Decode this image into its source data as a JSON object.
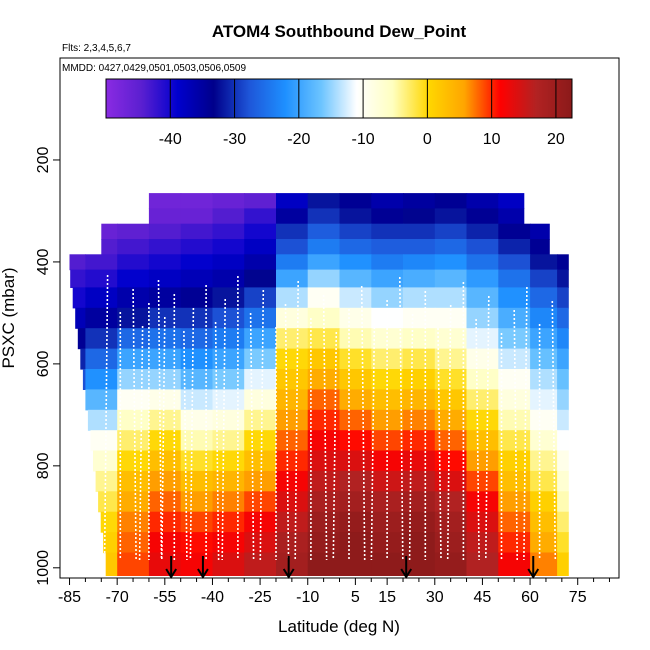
{
  "chart_data": {
    "type": "heatmap",
    "title": "ATOM4 Southbound Dew_Point",
    "flights_note": "Flts: 2,3,4,5,6,7",
    "dates_note": "MMDD: 0427,0429,0501,0503,0506,0509",
    "xlabel": "Latitude (deg N)",
    "ylabel": "PSXC (mbar)",
    "xlim": [
      -88,
      88
    ],
    "ylim": [
      1020,
      0
    ],
    "x_ticks": [
      -85,
      -70,
      -55,
      -40,
      -25,
      -10,
      5,
      15,
      30,
      45,
      60,
      75
    ],
    "y_ticks": [
      200,
      400,
      600,
      800,
      1000
    ],
    "colorbar": {
      "range": [
        -50,
        22.5
      ],
      "ticks": [
        -40,
        -30,
        -20,
        -10,
        0,
        10,
        20
      ],
      "colors": [
        "#8a2be2",
        "#5a1fd0",
        "#0000cd",
        "#00008b",
        "#1e56d9",
        "#1e90ff",
        "#6cc4ff",
        "#ffffff",
        "#ffffc0",
        "#ffd700",
        "#ffa500",
        "#ff0000",
        "#b22222",
        "#8b1a1a"
      ]
    },
    "altitude_layers_mbar": [
      280,
      310,
      340,
      370,
      400,
      430,
      470,
      510,
      550,
      590,
      630,
      670,
      710,
      750,
      790,
      830,
      870,
      910,
      950,
      990
    ],
    "latitude_bins": [
      -85,
      -75,
      -65,
      -55,
      -45,
      -35,
      -25,
      -15,
      -5,
      5,
      15,
      25,
      35,
      45,
      55,
      65,
      72
    ],
    "dewpoint_grid": [
      [
        -48,
        -49,
        -48,
        -47,
        -47,
        -46,
        -45,
        -38,
        -32,
        -34,
        -36,
        -35,
        -34,
        -36,
        -38,
        -40,
        -42
      ],
      [
        -47,
        -48,
        -47,
        -46,
        -46,
        -44,
        -42,
        -35,
        -30,
        -32,
        -34,
        -33,
        -32,
        -34,
        -36,
        -38,
        -40
      ],
      [
        -46,
        -46,
        -45,
        -44,
        -43,
        -42,
        -40,
        -30,
        -27,
        -29,
        -30,
        -30,
        -29,
        -31,
        -34,
        -36,
        -38
      ],
      [
        -45,
        -44,
        -43,
        -42,
        -41,
        -40,
        -38,
        -28,
        -24,
        -26,
        -27,
        -27,
        -26,
        -28,
        -31,
        -34,
        -36
      ],
      [
        -44,
        -43,
        -41,
        -40,
        -39,
        -38,
        -36,
        -24,
        -20,
        -22,
        -24,
        -23,
        -22,
        -25,
        -28,
        -32,
        -34
      ],
      [
        -42,
        -41,
        -39,
        -38,
        -37,
        -36,
        -33,
        -20,
        -15,
        -18,
        -20,
        -19,
        -18,
        -21,
        -25,
        -29,
        -32
      ],
      [
        -40,
        -38,
        -36,
        -35,
        -34,
        -32,
        -29,
        -14,
        -10,
        -13,
        -15,
        -14,
        -14,
        -18,
        -22,
        -26,
        -29
      ],
      [
        -37,
        -35,
        -32,
        -30,
        -30,
        -28,
        -25,
        -8,
        -6,
        -9,
        -11,
        -10,
        -10,
        -15,
        -19,
        -23,
        -26
      ],
      [
        -34,
        -30,
        -26,
        -25,
        -26,
        -24,
        -20,
        -3,
        -2,
        -5,
        -7,
        -6,
        -7,
        -12,
        -16,
        -20,
        -23
      ],
      [
        -31,
        -26,
        -20,
        -20,
        -22,
        -20,
        -16,
        0,
        2,
        -1,
        -3,
        -2,
        -4,
        -9,
        -13,
        -17,
        -20
      ],
      [
        -28,
        -22,
        -15,
        -15,
        -18,
        -16,
        -12,
        2,
        5,
        2,
        0,
        1,
        -1,
        -6,
        -10,
        -14,
        -17
      ],
      [
        -25,
        -18,
        -10,
        -9,
        -13,
        -12,
        -8,
        4,
        8,
        5,
        3,
        4,
        2,
        -3,
        -8,
        -12,
        -15
      ],
      [
        -22,
        -14,
        -6,
        -4,
        -9,
        -8,
        -4,
        6,
        10,
        8,
        6,
        7,
        5,
        0,
        -5,
        -10,
        -13
      ],
      [
        -19,
        -10,
        -3,
        0,
        -5,
        -4,
        0,
        8,
        12,
        11,
        9,
        10,
        8,
        3,
        -2,
        -7,
        -11
      ],
      [
        -16,
        -7,
        0,
        3,
        -1,
        0,
        3,
        10,
        14,
        14,
        12,
        13,
        11,
        6,
        1,
        -4,
        -9
      ],
      [
        -14,
        -4,
        3,
        6,
        3,
        4,
        6,
        12,
        16,
        17,
        15,
        16,
        14,
        9,
        3,
        -2,
        -7
      ],
      [
        -12,
        -2,
        5,
        8,
        6,
        7,
        9,
        14,
        18,
        19,
        18,
        19,
        17,
        12,
        6,
        1,
        -5
      ],
      [
        -10,
        0,
        7,
        10,
        9,
        10,
        12,
        16,
        20,
        21,
        20,
        21,
        19,
        14,
        8,
        3,
        -3
      ],
      [
        -9,
        1,
        8,
        12,
        11,
        12,
        14,
        18,
        21,
        22,
        21,
        22,
        20,
        16,
        10,
        5,
        -1
      ],
      [
        -8,
        2,
        9,
        13,
        12,
        14,
        16,
        19,
        22,
        22,
        22,
        22,
        21,
        17,
        12,
        7,
        1
      ]
    ],
    "flight_arrow_latitudes": [
      -53,
      -43,
      -16,
      21,
      61
    ],
    "profile_latitudes": [
      -73,
      -69,
      -65,
      -62,
      -60,
      -57,
      -55,
      -52,
      -49,
      -46,
      -42,
      -39,
      -36,
      -32,
      -28,
      -24,
      -20,
      -17,
      -13,
      -9,
      -5,
      -1,
      3,
      7,
      11,
      15,
      19,
      23,
      27,
      31,
      35,
      39,
      43,
      47,
      51,
      55,
      59,
      63,
      67
    ]
  }
}
